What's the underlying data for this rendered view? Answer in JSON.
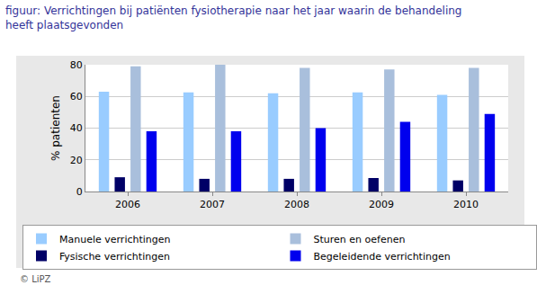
{
  "chart_data": {
    "type": "bar",
    "title": "figuur: Verrichtingen bij patiënten fysiotherapie naar het jaar waarin de behandeling\nheeft plaatsgevonden",
    "y_label": "% patienten",
    "categories": [
      "2006",
      "2007",
      "2008",
      "2009",
      "2010"
    ],
    "series": [
      {
        "name": "Manuele verrichtingen",
        "color": "#99ccff",
        "values": [
          63,
          62.5,
          62,
          62.5,
          61
        ]
      },
      {
        "name": "Fysische verrichtingen",
        "color": "#000066",
        "values": [
          9,
          8,
          8,
          8.5,
          7
        ]
      },
      {
        "name": "Sturen en oefenen",
        "color": "#a9bfdc",
        "values": [
          79,
          80,
          78,
          77,
          78
        ]
      },
      {
        "name": "Begeleidende verrichtingen",
        "color": "#0000ee",
        "values": [
          38,
          38,
          40,
          44,
          49
        ]
      }
    ],
    "ylim": [
      0,
      80
    ],
    "yticks": [
      0,
      20,
      40,
      60,
      80
    ],
    "grid": true,
    "legend": "bottom",
    "annotations": [
      "© LiPZ"
    ]
  }
}
